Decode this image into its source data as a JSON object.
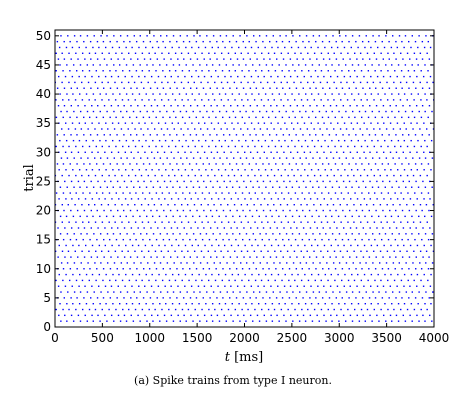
{
  "chart_data": {
    "type": "scatter",
    "xlim": [
      0,
      4000
    ],
    "ylim": [
      0,
      51
    ],
    "xticks": [
      0,
      500,
      1000,
      1500,
      2000,
      2500,
      3000,
      3500,
      4000
    ],
    "yticks": [
      0,
      5,
      10,
      15,
      20,
      25,
      30,
      35,
      40,
      45,
      50
    ],
    "xlabel_var": "t",
    "xlabel_unit": "[ms]",
    "ylabel": "trial",
    "marker_color": "#0000ff",
    "grid": false,
    "trials": 50,
    "spike_interval_ms": 70,
    "spike_phase_ms_by_trial": [
      58,
      37,
      11,
      52,
      26,
      64,
      40,
      14,
      49,
      23,
      67,
      31,
      6,
      45,
      20,
      61,
      35,
      9,
      55,
      29,
      3,
      42,
      17,
      58,
      33,
      7,
      48,
      22,
      65,
      38,
      12,
      51,
      26,
      1,
      44,
      19,
      60,
      34,
      8,
      53,
      28,
      4,
      41,
      16,
      57,
      32,
      10,
      47,
      24,
      63
    ]
  },
  "caption": "(a) Spike trains from type I neuron."
}
